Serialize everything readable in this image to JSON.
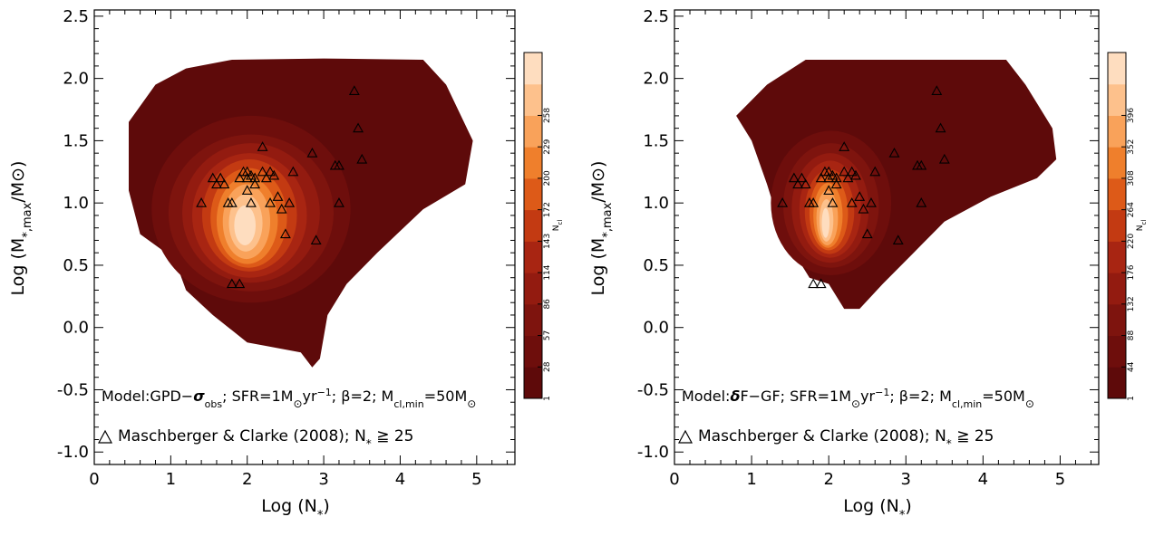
{
  "chart_data": [
    {
      "type": "heatmap",
      "xlabel": "Log (N",
      "xlabel_sub": "*",
      "xlabel_close": ")",
      "ylabel": "Log (M",
      "ylabel_sub": "*,max",
      "ylabel_rest": "/M",
      "ylabel_close": ")",
      "xlim": [
        0,
        5.5
      ],
      "ylim": [
        -1.1,
        2.55
      ],
      "xticks": [
        "0",
        "1",
        "2",
        "3",
        "4",
        "5"
      ],
      "xtick_values": [
        0,
        1,
        2,
        3,
        4,
        5
      ],
      "yticks": [
        "-1.0",
        "-0.5",
        "0.0",
        "0.5",
        "1.0",
        "1.5",
        "2.0",
        "2.5"
      ],
      "ytick_values": [
        -1.0,
        -0.5,
        0.0,
        0.5,
        1.0,
        1.5,
        2.0,
        2.5
      ],
      "annotation_model_prefix": "Model:GPD−",
      "annotation_model_sym": "σ",
      "annotation_model_sub": "obs",
      "annotation_sfr": "; SFR=1M",
      "annotation_sfr_unit": "yr",
      "annotation_sfr_exp": "−1",
      "annotation_beta": "; β=2; M",
      "annotation_mcl_sub": "cl,min",
      "annotation_mcl_val": "=50M",
      "legend_text": "Maschberger & Clarke (2008); N",
      "legend_sub": "*",
      "legend_cond": " ≧ 25",
      "colorbar_label": "N",
      "colorbar_label_sub": "cl",
      "colorbar_ticks": [
        "1",
        "28",
        "57",
        "86",
        "114",
        "143",
        "172",
        "200",
        "229",
        "258"
      ],
      "colorbar_colors": [
        "#5e0a0a",
        "#6e0e0c",
        "#7e140e",
        "#931b10",
        "#a82512",
        "#c33a12",
        "#dd5a18",
        "#ef7f2c",
        "#f9a25a",
        "#fdc18c",
        "#feddbf"
      ],
      "envelope": [
        [
          0.45,
          1.65
        ],
        [
          0.8,
          1.95
        ],
        [
          1.2,
          2.08
        ],
        [
          1.8,
          2.15
        ],
        [
          3.0,
          2.16
        ],
        [
          4.3,
          2.15
        ],
        [
          4.6,
          1.95
        ],
        [
          4.95,
          1.5
        ],
        [
          4.85,
          1.15
        ],
        [
          4.3,
          0.95
        ],
        [
          3.7,
          0.6
        ],
        [
          3.3,
          0.35
        ],
        [
          3.05,
          0.1
        ],
        [
          2.95,
          -0.25
        ],
        [
          2.85,
          -0.32
        ],
        [
          2.7,
          -0.2
        ],
        [
          2.0,
          -0.12
        ],
        [
          1.55,
          0.1
        ],
        [
          1.2,
          0.3
        ],
        [
          1.05,
          0.55
        ],
        [
          0.6,
          0.75
        ],
        [
          0.45,
          1.1
        ]
      ],
      "contours": [
        {
          "cx": 2.05,
          "cy": 0.95,
          "rx": 1.3,
          "ry": 0.75
        },
        {
          "cx": 2.05,
          "cy": 0.92,
          "rx": 1.08,
          "ry": 0.63
        },
        {
          "cx": 2.05,
          "cy": 0.92,
          "rx": 0.9,
          "ry": 0.56
        },
        {
          "cx": 2.03,
          "cy": 0.9,
          "rx": 0.75,
          "ry": 0.5
        },
        {
          "cx": 2.03,
          "cy": 0.9,
          "rx": 0.62,
          "ry": 0.45
        },
        {
          "cx": 2.02,
          "cy": 0.88,
          "rx": 0.5,
          "ry": 0.4
        },
        {
          "cx": 2.0,
          "cy": 0.86,
          "rx": 0.4,
          "ry": 0.35
        },
        {
          "cx": 1.99,
          "cy": 0.85,
          "rx": 0.31,
          "ry": 0.3
        },
        {
          "cx": 1.98,
          "cy": 0.84,
          "rx": 0.22,
          "ry": 0.23
        },
        {
          "cx": 1.97,
          "cy": 0.82,
          "rx": 0.14,
          "ry": 0.16
        }
      ],
      "scatter": [
        [
          1.4,
          1.0
        ],
        [
          1.55,
          1.2
        ],
        [
          1.6,
          1.15
        ],
        [
          1.65,
          1.2
        ],
        [
          1.7,
          1.15
        ],
        [
          1.75,
          1.0
        ],
        [
          1.8,
          1.0
        ],
        [
          1.9,
          1.2
        ],
        [
          1.95,
          1.25
        ],
        [
          2.0,
          1.25
        ],
        [
          2.05,
          1.22
        ],
        [
          2.1,
          1.2
        ],
        [
          2.2,
          1.25
        ],
        [
          2.25,
          1.2
        ],
        [
          2.3,
          1.25
        ],
        [
          2.35,
          1.22
        ],
        [
          2.4,
          1.05
        ],
        [
          2.0,
          1.1
        ],
        [
          2.05,
          1.0
        ],
        [
          2.1,
          1.15
        ],
        [
          2.2,
          1.45
        ],
        [
          2.3,
          1.0
        ],
        [
          2.45,
          0.95
        ],
        [
          2.5,
          0.75
        ],
        [
          2.6,
          1.25
        ],
        [
          2.85,
          1.4
        ],
        [
          3.15,
          1.3
        ],
        [
          3.2,
          1.3
        ],
        [
          3.2,
          1.0
        ],
        [
          3.4,
          1.9
        ],
        [
          3.45,
          1.6
        ],
        [
          3.5,
          1.35
        ],
        [
          2.9,
          0.7
        ],
        [
          1.8,
          0.35
        ],
        [
          1.9,
          0.35
        ],
        [
          2.0,
          1.2
        ],
        [
          2.55,
          1.0
        ]
      ]
    },
    {
      "type": "heatmap",
      "xlabel": "Log (N",
      "xlabel_sub": "*",
      "xlabel_close": ")",
      "ylabel": "Log (M",
      "ylabel_sub": "*,max",
      "ylabel_rest": "/M",
      "ylabel_close": ")",
      "xlim": [
        0,
        5.5
      ],
      "ylim": [
        -1.1,
        2.55
      ],
      "xticks": [
        "0",
        "1",
        "2",
        "3",
        "4",
        "5"
      ],
      "xtick_values": [
        0,
        1,
        2,
        3,
        4,
        5
      ],
      "yticks": [
        "-1.0",
        "-0.5",
        "0.0",
        "0.5",
        "1.0",
        "1.5",
        "2.0",
        "2.5"
      ],
      "ytick_values": [
        -1.0,
        -0.5,
        0.0,
        0.5,
        1.0,
        1.5,
        2.0,
        2.5
      ],
      "annotation_model_prefix": "Model:",
      "annotation_model_sym": "δ",
      "annotation_model_sub": "",
      "annotation_model_after": "F−GF",
      "annotation_sfr": "; SFR=1M",
      "annotation_sfr_unit": "yr",
      "annotation_sfr_exp": "−1",
      "annotation_beta": "; β=2; M",
      "annotation_mcl_sub": "cl,min",
      "annotation_mcl_val": "=50M",
      "legend_text": "Maschberger & Clarke (2008); N",
      "legend_sub": "*",
      "legend_cond": " ≧ 25",
      "colorbar_label": "N",
      "colorbar_label_sub": "cl",
      "colorbar_ticks": [
        "1",
        "44",
        "88",
        "132",
        "176",
        "220",
        "264",
        "308",
        "352",
        "396"
      ],
      "colorbar_colors": [
        "#5e0a0a",
        "#6e0e0c",
        "#7e140e",
        "#931b10",
        "#a82512",
        "#c33a12",
        "#dd5a18",
        "#ef7f2c",
        "#f9a25a",
        "#fdc18c",
        "#feddbf"
      ],
      "envelope": [
        [
          0.8,
          1.7
        ],
        [
          1.2,
          1.95
        ],
        [
          1.7,
          2.15
        ],
        [
          3.0,
          2.15
        ],
        [
          4.3,
          2.15
        ],
        [
          4.55,
          1.95
        ],
        [
          4.9,
          1.6
        ],
        [
          4.95,
          1.35
        ],
        [
          4.7,
          1.2
        ],
        [
          4.1,
          1.05
        ],
        [
          3.5,
          0.85
        ],
        [
          3.1,
          0.6
        ],
        [
          2.7,
          0.35
        ],
        [
          2.4,
          0.15
        ],
        [
          2.2,
          0.15
        ],
        [
          2.0,
          0.35
        ],
        [
          1.75,
          0.4
        ],
        [
          1.55,
          0.6
        ],
        [
          1.35,
          0.85
        ],
        [
          1.2,
          1.15
        ],
        [
          1.0,
          1.5
        ]
      ],
      "contours": [
        {
          "cx": 2.03,
          "cy": 1.0,
          "rx": 0.78,
          "ry": 0.58
        },
        {
          "cx": 2.03,
          "cy": 0.98,
          "rx": 0.62,
          "ry": 0.5
        },
        {
          "cx": 2.02,
          "cy": 0.96,
          "rx": 0.5,
          "ry": 0.44
        },
        {
          "cx": 2.02,
          "cy": 0.95,
          "rx": 0.4,
          "ry": 0.39
        },
        {
          "cx": 2.01,
          "cy": 0.93,
          "rx": 0.32,
          "ry": 0.34
        },
        {
          "cx": 2.0,
          "cy": 0.92,
          "rx": 0.25,
          "ry": 0.3
        },
        {
          "cx": 1.99,
          "cy": 0.9,
          "rx": 0.19,
          "ry": 0.26
        },
        {
          "cx": 1.98,
          "cy": 0.88,
          "rx": 0.14,
          "ry": 0.22
        },
        {
          "cx": 1.97,
          "cy": 0.86,
          "rx": 0.09,
          "ry": 0.17
        },
        {
          "cx": 1.96,
          "cy": 0.84,
          "rx": 0.05,
          "ry": 0.12
        }
      ],
      "scatter": [
        [
          1.4,
          1.0
        ],
        [
          1.55,
          1.2
        ],
        [
          1.6,
          1.15
        ],
        [
          1.65,
          1.2
        ],
        [
          1.7,
          1.15
        ],
        [
          1.75,
          1.0
        ],
        [
          1.8,
          1.0
        ],
        [
          1.9,
          1.2
        ],
        [
          1.95,
          1.25
        ],
        [
          2.0,
          1.25
        ],
        [
          2.05,
          1.22
        ],
        [
          2.1,
          1.2
        ],
        [
          2.2,
          1.25
        ],
        [
          2.25,
          1.2
        ],
        [
          2.3,
          1.25
        ],
        [
          2.35,
          1.22
        ],
        [
          2.4,
          1.05
        ],
        [
          2.0,
          1.1
        ],
        [
          2.05,
          1.0
        ],
        [
          2.1,
          1.15
        ],
        [
          2.2,
          1.45
        ],
        [
          2.3,
          1.0
        ],
        [
          2.45,
          0.95
        ],
        [
          2.5,
          0.75
        ],
        [
          2.6,
          1.25
        ],
        [
          2.85,
          1.4
        ],
        [
          3.15,
          1.3
        ],
        [
          3.2,
          1.3
        ],
        [
          3.2,
          1.0
        ],
        [
          3.4,
          1.9
        ],
        [
          3.45,
          1.6
        ],
        [
          3.5,
          1.35
        ],
        [
          2.9,
          0.7
        ],
        [
          1.8,
          0.35
        ],
        [
          1.9,
          0.35
        ],
        [
          2.0,
          1.2
        ],
        [
          2.55,
          1.0
        ]
      ]
    }
  ]
}
